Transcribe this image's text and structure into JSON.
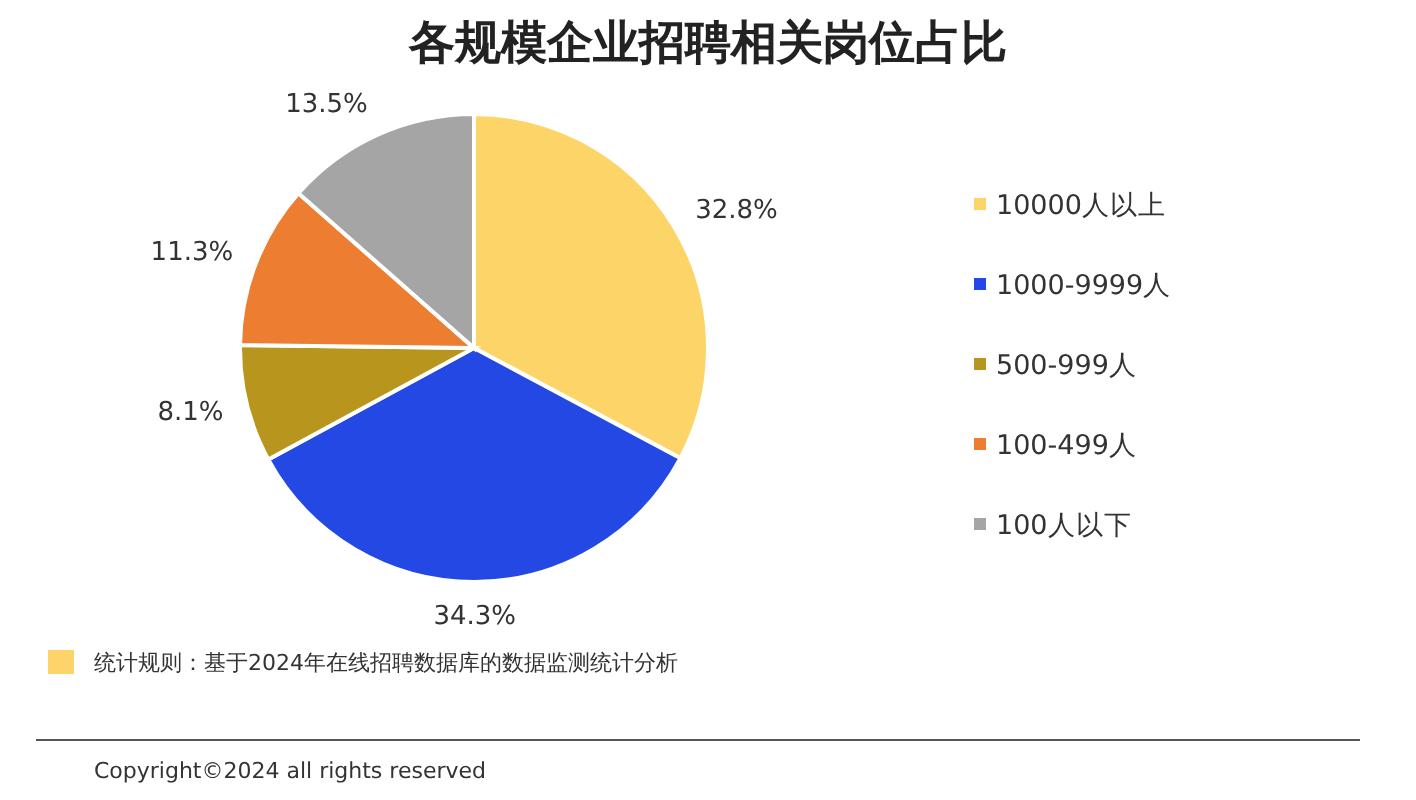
{
  "chart_data": {
    "type": "pie",
    "title": "各规模企业招聘相关岗位占比",
    "categories": [
      "10000人以上",
      "1000-9999人",
      "500-999人",
      "100-499人",
      "100人以下"
    ],
    "values": [
      32.8,
      34.3,
      8.1,
      11.3,
      13.5
    ],
    "colors": [
      "#fcd467",
      "#2448e4",
      "#b8961e",
      "#ed7d31",
      "#a5a5a5"
    ],
    "value_labels": [
      "32.8%",
      "34.3%",
      "8.1%",
      "11.3%",
      "13.5%"
    ],
    "legend": "right",
    "annotations": [
      "统计规则：基于2024年在线招聘数据库的数据监测统计分析",
      "Copyright©2024 all rights reserved"
    ]
  }
}
